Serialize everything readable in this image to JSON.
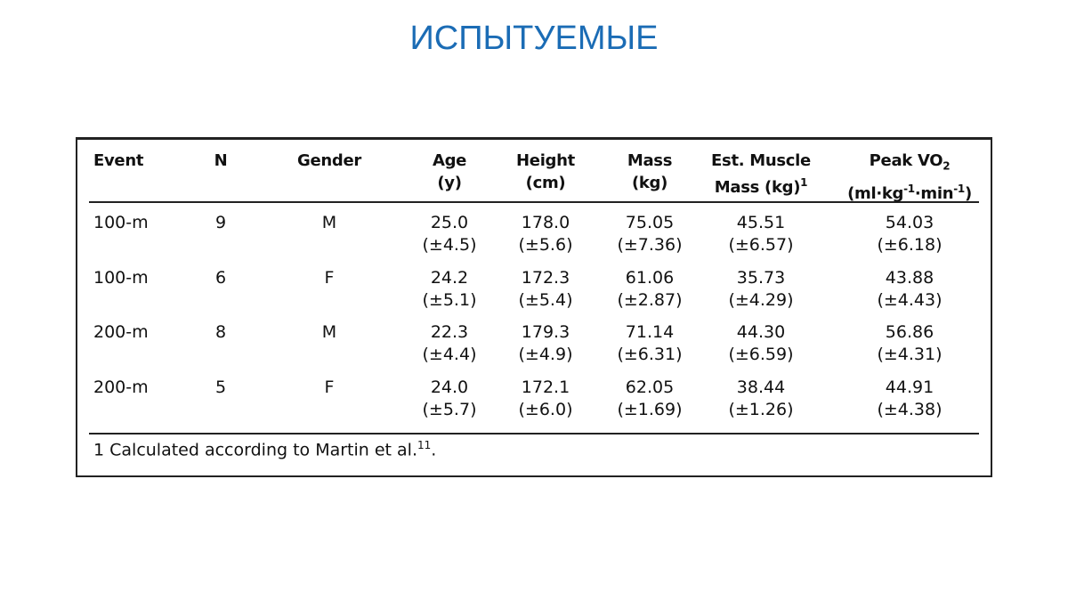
{
  "title": "ИСПЫТУЕМЫЕ",
  "table": {
    "headers": [
      [
        [
          {
            "text": "Event"
          }
        ]
      ],
      [
        [
          {
            "text": "N"
          }
        ]
      ],
      [
        [
          {
            "text": "Gender"
          }
        ]
      ],
      [
        [
          {
            "text": "Age"
          }
        ],
        [
          {
            "text": "(y)"
          }
        ]
      ],
      [
        [
          {
            "text": "Height"
          }
        ],
        [
          {
            "text": "(cm)"
          }
        ]
      ],
      [
        [
          {
            "text": "Mass"
          }
        ],
        [
          {
            "text": "(kg)"
          }
        ]
      ],
      [
        [
          {
            "text": "Est. Muscle"
          }
        ],
        [
          {
            "text": "Mass (kg)"
          },
          {
            "text": "1",
            "pos": "sup"
          }
        ]
      ],
      [
        [
          {
            "text": "Peak VO"
          },
          {
            "text": "2",
            "pos": "sub"
          }
        ],
        [
          {
            "text": "(ml·kg"
          },
          {
            "text": "-1",
            "pos": "sup"
          },
          {
            "text": "·min"
          },
          {
            "text": "-1",
            "pos": "sup"
          },
          {
            "text": ")"
          }
        ]
      ]
    ],
    "rows": [
      [
        [
          "100-m"
        ],
        [
          "9"
        ],
        [
          "M"
        ],
        [
          "25.0",
          "(±4.5)"
        ],
        [
          "178.0",
          "(±5.6)"
        ],
        [
          "75.05",
          "(±7.36)"
        ],
        [
          "45.51",
          "(±6.57)"
        ],
        [
          "54.03",
          "(±6.18)"
        ]
      ],
      [
        [
          "100-m"
        ],
        [
          "6"
        ],
        [
          "F"
        ],
        [
          "24.2",
          "(±5.1)"
        ],
        [
          "172.3",
          "(±5.4)"
        ],
        [
          "61.06",
          "(±2.87)"
        ],
        [
          "35.73",
          "(±4.29)"
        ],
        [
          "43.88",
          "(±4.43)"
        ]
      ],
      [
        [
          "200-m"
        ],
        [
          "8"
        ],
        [
          "M"
        ],
        [
          "22.3",
          "(±4.4)"
        ],
        [
          "179.3",
          "(±4.9)"
        ],
        [
          "71.14",
          "(±6.31)"
        ],
        [
          "44.30",
          "(±6.59)"
        ],
        [
          "56.86",
          "(±4.31)"
        ]
      ],
      [
        [
          "200-m"
        ],
        [
          "5"
        ],
        [
          "F"
        ],
        [
          "24.0",
          "(±5.7)"
        ],
        [
          "172.1",
          "(±6.0)"
        ],
        [
          "62.05",
          "(±1.69)"
        ],
        [
          "38.44",
          "(±1.26)"
        ],
        [
          "44.91",
          "(±4.38)"
        ]
      ]
    ],
    "footnote": [
      {
        "text": "1 Calculated according to Martin et al."
      },
      {
        "text": "11",
        "pos": "sup"
      },
      {
        "text": "."
      }
    ]
  }
}
